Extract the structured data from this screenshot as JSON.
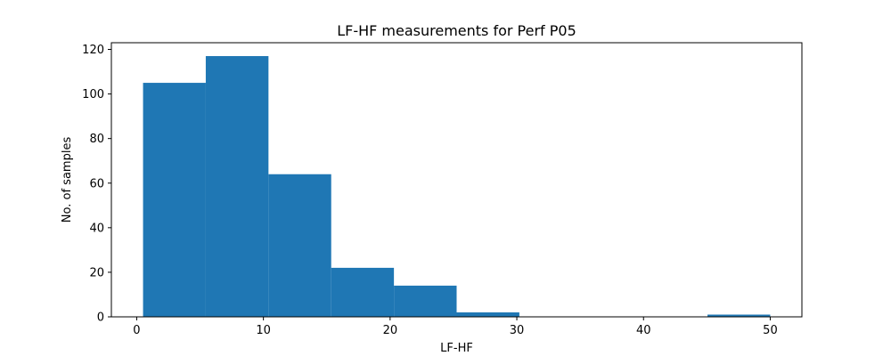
{
  "chart_data": {
    "type": "bar",
    "title": "LF-HF measurements for Perf P05",
    "xlabel": "LF-HF",
    "ylabel": "No. of samples",
    "bin_edges": [
      0.5,
      5.45,
      10.4,
      15.35,
      20.3,
      25.25,
      30.2,
      35.15,
      40.1,
      45.05,
      50.0
    ],
    "values": [
      105,
      117,
      64,
      22,
      14,
      2,
      0,
      0,
      0,
      1
    ],
    "xlim": [
      -2.0,
      52.5
    ],
    "ylim": [
      0,
      123
    ],
    "xticks": [
      0,
      10,
      20,
      30,
      40,
      50
    ],
    "yticks": [
      0,
      20,
      40,
      60,
      80,
      100,
      120
    ],
    "grid": false,
    "bar_color": "#1f77b4"
  }
}
